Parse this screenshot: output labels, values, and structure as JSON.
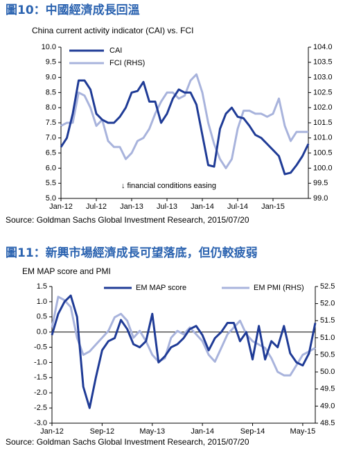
{
  "chart_data": [
    {
      "type": "line",
      "figure_title": "圖10：中國經濟成長回溫",
      "title": "China current activity indicator (CAI) vs. FCI",
      "annotation": "↓ financial conditions easing",
      "source": "Source: Goldman Sachs Global Investment  Research, 2015/07/20",
      "categories": [
        "Jan-12",
        null,
        null,
        null,
        null,
        null,
        "Jul-12",
        null,
        null,
        null,
        null,
        null,
        "Jan-13",
        null,
        null,
        null,
        null,
        null,
        "Jul-13",
        null,
        null,
        null,
        null,
        null,
        "Jan-14",
        null,
        null,
        null,
        null,
        null,
        "Jul-14",
        null,
        null,
        null,
        null,
        null,
        "Jan-15",
        null,
        null,
        null,
        null,
        null,
        null
      ],
      "series": [
        {
          "name": "CAI",
          "color": "#1f3b96",
          "values": [
            6.7,
            7.0,
            7.8,
            8.9,
            8.9,
            8.6,
            7.8,
            7.6,
            7.5,
            7.5,
            7.7,
            8.0,
            8.5,
            8.55,
            8.85,
            8.2,
            8.2,
            7.5,
            7.8,
            8.3,
            8.6,
            8.5,
            8.5,
            8.1,
            7.1,
            6.1,
            6.05,
            7.3,
            7.8,
            8.0,
            7.7,
            7.65,
            7.4,
            7.1,
            7.0,
            6.8,
            6.6,
            6.4,
            5.8,
            5.85,
            6.1,
            6.4,
            6.8
          ]
        },
        {
          "name": "FCI (RHS)",
          "color": "#a8b3dc",
          "axis": "y2",
          "values": [
            101.4,
            101.5,
            101.5,
            102.5,
            102.4,
            102.0,
            101.4,
            101.6,
            100.9,
            100.7,
            100.7,
            100.3,
            100.5,
            100.9,
            101.0,
            101.3,
            101.8,
            102.2,
            102.5,
            102.5,
            102.3,
            102.4,
            102.9,
            103.1,
            102.5,
            101.5,
            100.8,
            100.3,
            100.0,
            100.3,
            101.3,
            101.9,
            101.9,
            101.8,
            101.8,
            101.7,
            101.8,
            102.3,
            101.4,
            100.9,
            101.2,
            101.2,
            101.2
          ]
        }
      ],
      "ylim": [
        5,
        10
      ],
      "yticks": [
        {
          "value": 5,
          "label": "5.0"
        },
        {
          "value": 5.5,
          "label": "5.5"
        },
        {
          "value": 6,
          "label": "6.0"
        },
        {
          "value": 6.5,
          "label": "6.5"
        },
        {
          "value": 7,
          "label": "7.0"
        },
        {
          "value": 7.5,
          "label": "7.5"
        },
        {
          "value": 8,
          "label": "8.0"
        },
        {
          "value": 8.5,
          "label": "8.5"
        },
        {
          "value": 9,
          "label": "9.0"
        },
        {
          "value": 9.5,
          "label": "9.5"
        },
        {
          "value": 10,
          "label": "10.0"
        }
      ],
      "y2lim": [
        99,
        104
      ],
      "y2ticks": [
        {
          "value": 99,
          "label": "99.0"
        },
        {
          "value": 99.5,
          "label": "99.5"
        },
        {
          "value": 100,
          "label": "100.0"
        },
        {
          "value": 100.5,
          "label": "100.5"
        },
        {
          "value": 101,
          "label": "101.0"
        },
        {
          "value": 101.5,
          "label": "101.5"
        },
        {
          "value": 102,
          "label": "102.0"
        },
        {
          "value": 102.5,
          "label": "102.5"
        },
        {
          "value": 103,
          "label": "103.0"
        },
        {
          "value": 103.5,
          "label": "103.5"
        },
        {
          "value": 104,
          "label": "104.0"
        }
      ],
      "grid": false,
      "legend": "top-left"
    },
    {
      "type": "line",
      "figure_title": "圖11：新興市場經濟成長可望落底，但仍較疲弱",
      "title": "EM MAP score and PMI",
      "source": "Source: Goldman Sachs Global Investment  Research, 2015/07/20",
      "categories": [
        "Jan-12",
        null,
        null,
        null,
        null,
        null,
        null,
        null,
        "Sep-12",
        null,
        null,
        null,
        null,
        null,
        null,
        null,
        "May-13",
        null,
        null,
        null,
        null,
        null,
        null,
        null,
        "Jan-14",
        null,
        null,
        null,
        null,
        null,
        null,
        null,
        "Sep-14",
        null,
        null,
        null,
        null,
        null,
        null,
        null,
        "May-15",
        null,
        null
      ],
      "series": [
        {
          "name": "EM MAP score",
          "color": "#1f3b96",
          "values": [
            -0.1,
            0.6,
            1.0,
            1.2,
            0.5,
            -1.8,
            -2.5,
            -1.5,
            -0.6,
            -0.3,
            -0.2,
            0.4,
            0.1,
            -0.4,
            -0.5,
            -0.3,
            0.6,
            -1.0,
            -0.8,
            -0.5,
            -0.4,
            -0.2,
            0.1,
            0.2,
            -0.1,
            -0.6,
            -0.2,
            0.0,
            0.3,
            0.3,
            -0.3,
            0.0,
            -0.9,
            0.2,
            -0.9,
            -0.3,
            -0.5,
            0.2,
            -0.7,
            -1.0,
            -1.1,
            -0.7,
            0.3
          ]
        },
        {
          "name": "EM PMI (RHS)",
          "color": "#a8b3dc",
          "axis": "y2",
          "values": [
            51.3,
            52.2,
            52.1,
            51.9,
            51.0,
            50.5,
            50.6,
            50.8,
            51.0,
            51.2,
            51.6,
            51.7,
            51.5,
            51.0,
            51.2,
            50.9,
            50.5,
            50.3,
            50.4,
            51.0,
            51.2,
            51.1,
            51.3,
            51.1,
            50.9,
            50.5,
            50.3,
            50.7,
            51.1,
            51.3,
            51.5,
            51.1,
            50.9,
            50.8,
            50.7,
            50.4,
            50.0,
            49.9,
            49.9,
            50.2,
            50.5,
            50.6,
            50.7
          ]
        }
      ],
      "ylim": [
        -3,
        1.5
      ],
      "yticks": [
        {
          "value": -3,
          "label": "-3.0"
        },
        {
          "value": -2.5,
          "label": "-2.5"
        },
        {
          "value": -2,
          "label": "-2.0"
        },
        {
          "value": -1.5,
          "label": "-1.5"
        },
        {
          "value": -1,
          "label": "-1.0"
        },
        {
          "value": -0.5,
          "label": "-0.5"
        },
        {
          "value": 0,
          "label": "0.0"
        },
        {
          "value": 0.5,
          "label": "0.5"
        },
        {
          "value": 1,
          "label": "1.0"
        },
        {
          "value": 1.5,
          "label": "1.5"
        }
      ],
      "y2lim": [
        48.5,
        52.5
      ],
      "y2ticks": [
        {
          "value": 48.5,
          "label": "48.5"
        },
        {
          "value": 49,
          "label": "49.0"
        },
        {
          "value": 49.5,
          "label": "49.5"
        },
        {
          "value": 50,
          "label": "50.0"
        },
        {
          "value": 50.5,
          "label": "50.5"
        },
        {
          "value": 51,
          "label": "51.0"
        },
        {
          "value": 51.5,
          "label": "51.5"
        },
        {
          "value": 52,
          "label": "52.0"
        },
        {
          "value": 52.5,
          "label": "52.5"
        }
      ],
      "grid": false,
      "legend": "top"
    }
  ]
}
